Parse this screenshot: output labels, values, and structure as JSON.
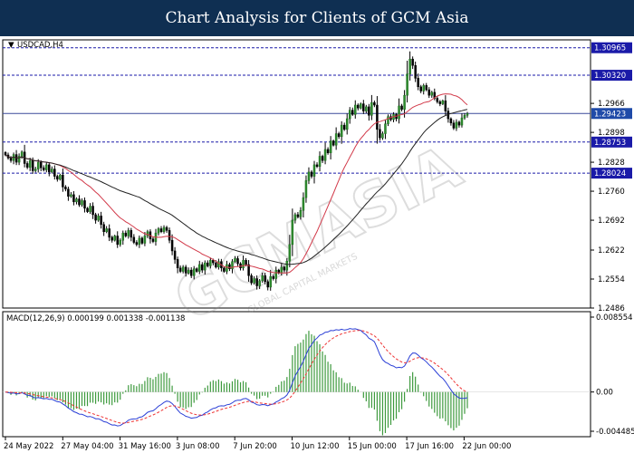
{
  "banner": {
    "title": "Chart Analysis for Clients of GCM Asia"
  },
  "watermark": {
    "brand": "GCMASIA",
    "sub": "GLOBAL CAPITAL MARKETS"
  },
  "chart_data": {
    "type": "candlestick",
    "symbol_label": "USDCAD,H4",
    "price_axis": {
      "min": 1.2486,
      "max": 1.3115,
      "ticks": [
        1.2966,
        1.2898,
        1.2828,
        1.276,
        1.2692,
        1.2622,
        1.2554,
        1.2486
      ]
    },
    "levels": [
      {
        "value": 1.30965,
        "label": "1.30965",
        "style": "dashed"
      },
      {
        "value": 1.3032,
        "label": "1.30320",
        "style": "dashed"
      },
      {
        "value": 1.29423,
        "label": "1.29423",
        "style": "current"
      },
      {
        "value": 1.28753,
        "label": "1.28753",
        "style": "dashed"
      },
      {
        "value": 1.28024,
        "label": "1.28024",
        "style": "dashed"
      }
    ],
    "x_labels": [
      "24 May 2022",
      "27 May 04:00",
      "31 May 16:00",
      "3 Jun 08:00",
      "7 Jun 20:00",
      "10 Jun 12:00",
      "15 Jun 00:00",
      "17 Jun 16:00",
      "22 Jun 00:00"
    ],
    "close": [
      1.2845,
      1.2838,
      1.2832,
      1.2846,
      1.2828,
      1.2842,
      1.2852,
      1.2825,
      1.2816,
      1.2832,
      1.2808,
      1.2812,
      1.2828,
      1.2815,
      1.281,
      1.2822,
      1.2805,
      1.2812,
      1.2795,
      1.2788,
      1.2798,
      1.277,
      1.2765,
      1.2748,
      1.2752,
      1.2735,
      1.2742,
      1.2728,
      1.2738,
      1.272,
      1.2712,
      1.2725,
      1.2705,
      1.2692,
      1.2702,
      1.2682,
      1.2665,
      1.2672,
      1.2652,
      1.2645,
      1.2655,
      1.2635,
      1.2645,
      1.2662,
      1.2655,
      1.2668,
      1.2652,
      1.264,
      1.2635,
      1.265,
      1.2638,
      1.2655,
      1.2665,
      1.2648,
      1.2642,
      1.2662,
      1.2672,
      1.2665,
      1.2675,
      1.2668,
      1.2645,
      1.262,
      1.26,
      1.258,
      1.2572,
      1.2582,
      1.2568,
      1.2575,
      1.2562,
      1.2578,
      1.2572,
      1.2588,
      1.2575,
      1.2592,
      1.2585,
      1.2598,
      1.2592,
      1.2582,
      1.2595,
      1.258,
      1.2572,
      1.2588,
      1.2578,
      1.2595,
      1.2602,
      1.259,
      1.258,
      1.2598,
      1.2588,
      1.2562,
      1.2545,
      1.2555,
      1.2538,
      1.255,
      1.2562,
      1.2548,
      1.2535,
      1.256,
      1.2555,
      1.2575,
      1.2568,
      1.2582,
      1.2575,
      1.2596,
      1.2635,
      1.2692,
      1.2705,
      1.27,
      1.2715,
      1.2745,
      1.2785,
      1.2805,
      1.2795,
      1.2822,
      1.2818,
      1.2842,
      1.2832,
      1.2858,
      1.285,
      1.2878,
      1.2868,
      1.2895,
      1.2888,
      1.2915,
      1.2905,
      1.293,
      1.295,
      1.294,
      1.2962,
      1.2955,
      1.2965,
      1.2948,
      1.2958,
      1.2938,
      1.2968,
      1.2962,
      1.2905,
      1.2885,
      1.2895,
      1.2918,
      1.2935,
      1.2928,
      1.294,
      1.293,
      1.296,
      1.2952,
      1.2985,
      1.3035,
      1.307,
      1.3055,
      1.3025,
      1.3005,
      1.2995,
      1.3008,
      1.2998,
      1.2985,
      1.2992,
      1.2978,
      1.297,
      1.2965,
      1.2972,
      1.2948,
      1.293,
      1.292,
      1.2908,
      1.2922,
      1.2915,
      1.2932,
      1.2938,
      1.2942
    ],
    "sma_fast_period": 20,
    "sma_slow_period": 50,
    "macd": {
      "label": "MACD(12,26,9) 0.000199 0.001338 -0.001138",
      "params": "12,26,9",
      "values": [
        0.000199,
        0.001338,
        -0.001138
      ],
      "ylim": [
        -0.004485,
        0.008554
      ],
      "ticks": [
        {
          "value": 0.008554,
          "label": "0.008554"
        },
        {
          "value": 0.0,
          "label": "0.00"
        },
        {
          "value": -0.004485,
          "label": "-0.004485"
        }
      ]
    }
  }
}
